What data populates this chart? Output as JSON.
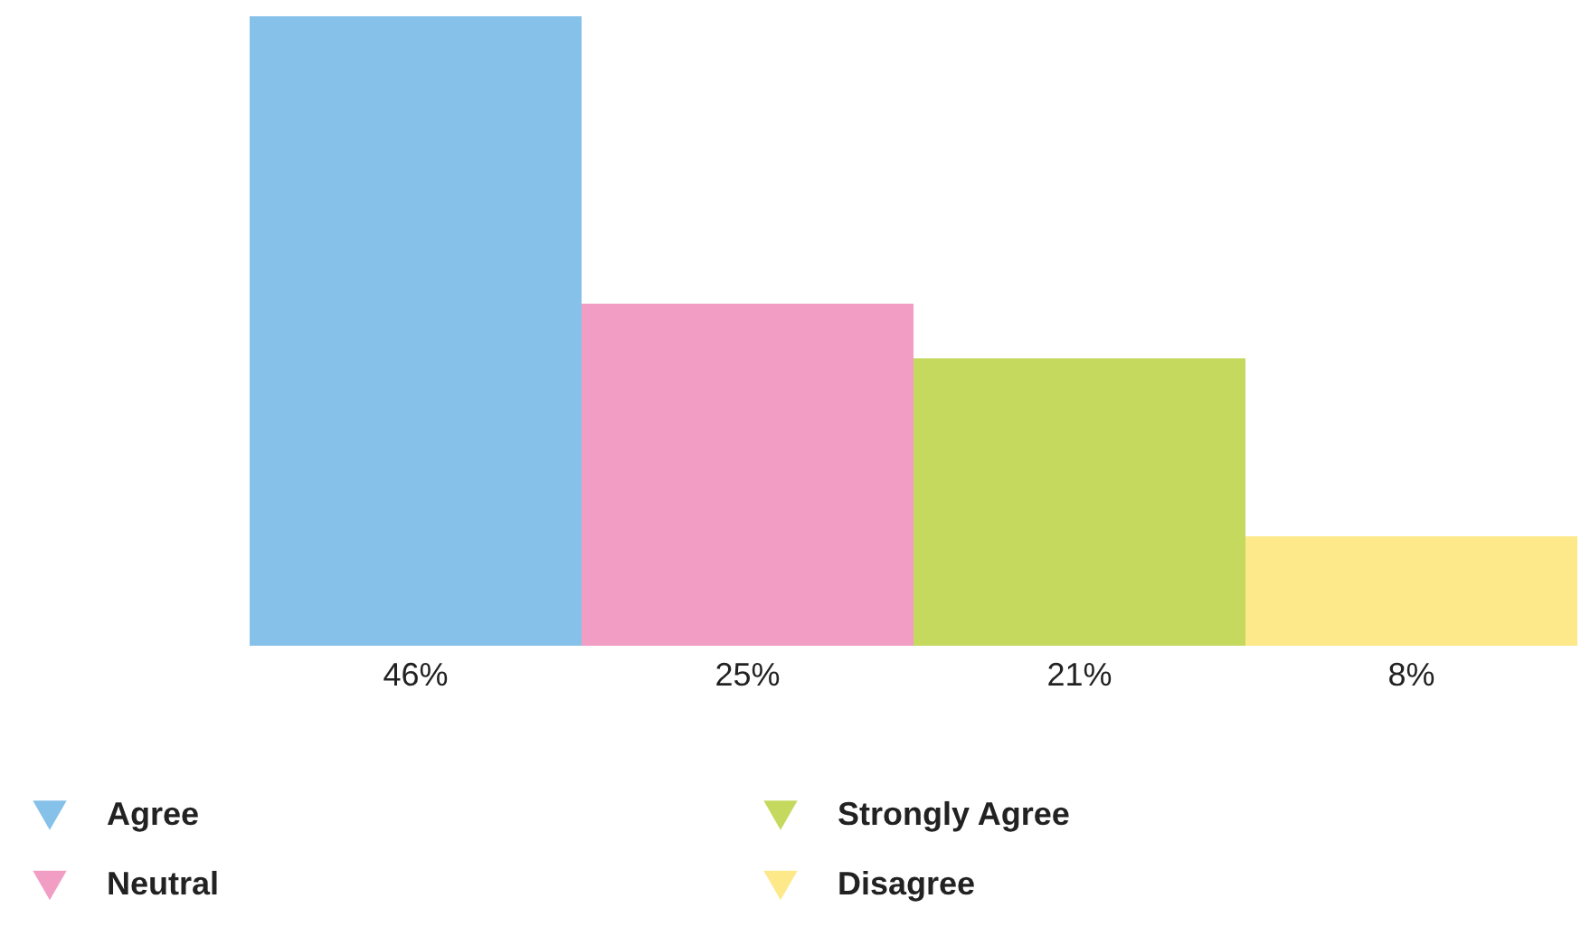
{
  "chart_data": {
    "type": "bar",
    "categories": [
      null,
      null,
      null,
      null
    ],
    "series": [
      {
        "name": "Agree",
        "color": "#85c1e9",
        "values": [
          46,
          null,
          null,
          null
        ],
        "value_labels": [
          "46%",
          null,
          null,
          null
        ]
      },
      {
        "name": "Neutral",
        "color": "#f29ec4",
        "values": [
          null,
          25,
          null,
          null
        ],
        "value_labels": [
          null,
          "25%",
          null,
          null
        ]
      },
      {
        "name": "Strongly Agree",
        "color": "#c5d95e",
        "values": [
          null,
          null,
          21,
          null
        ],
        "value_labels": [
          null,
          null,
          "21%",
          null
        ]
      },
      {
        "name": "Disagree",
        "color": "#fde98a",
        "values": [
          null,
          null,
          null,
          8
        ],
        "value_labels": [
          null,
          null,
          null,
          "8%"
        ]
      }
    ],
    "ylim": [
      0,
      46
    ],
    "stacked": true,
    "legend": "bottom",
    "grid": false
  }
}
